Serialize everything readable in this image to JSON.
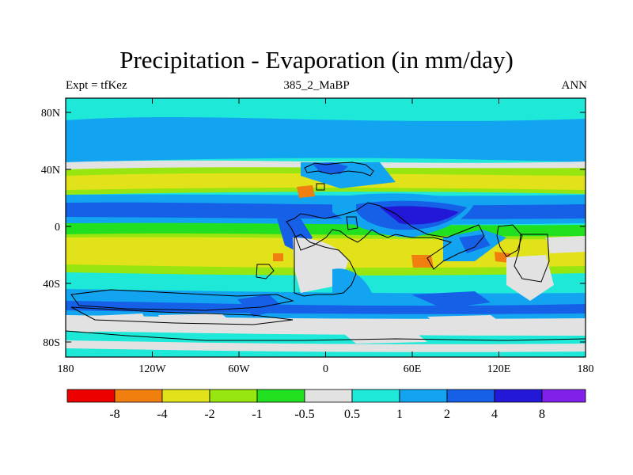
{
  "title": "Precipitation - Evaporation (in mm/day)",
  "subtitle_left": "Expt = tfKez",
  "subtitle_center": "385_2_MaBP",
  "subtitle_right": "ANN",
  "x_ticks": [
    "180",
    "120W",
    "60W",
    "0",
    "60E",
    "120E",
    "180"
  ],
  "y_ticks": [
    "80N",
    "40N",
    "0",
    "40S",
    "80S"
  ],
  "colorbar": {
    "colors": [
      "#ee0000",
      "#f07f10",
      "#e2e21a",
      "#98e610",
      "#20e020",
      "#e2e2e2",
      "#1ee8d8",
      "#12a4f0",
      "#1660e8",
      "#2418d8",
      "#8020e8"
    ],
    "labels": [
      "-8",
      "-4",
      "-2",
      "-1",
      "-0.5",
      "0.5",
      "1",
      "2",
      "4",
      "8"
    ]
  }
}
